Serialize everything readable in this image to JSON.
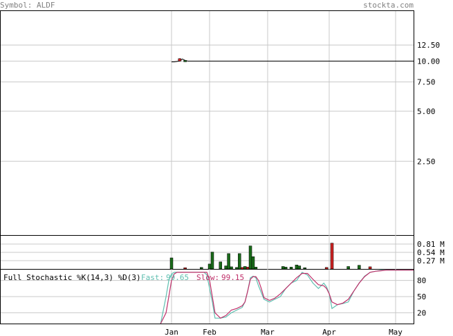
{
  "header": {
    "symbol_label": "Symbol: ALDF",
    "site_label": "stockta.com"
  },
  "colors": {
    "frame": "#000000",
    "grid": "#c8c8c8",
    "header_text": "#808080",
    "up_volume": "#1a6b1a",
    "down_volume": "#cc2222",
    "fast_line": "#5fbfb0",
    "slow_line": "#c0306a",
    "price_line": "#000000"
  },
  "stochastic_legend": {
    "title": "Full Stochastic %K(14,3) %D(3)",
    "fast_label": "Fast:",
    "fast_value": "99.65",
    "slow_label": "Slow:",
    "slow_value": "99.15"
  },
  "chart_data": [
    {
      "type": "line",
      "panel": "price",
      "y_scale": "log",
      "y_tick_labels": [
        "12.50",
        "10.00",
        "7.50",
        "5.00",
        "2.50"
      ],
      "y_ticks": [
        12.5,
        10.0,
        7.5,
        5.0,
        2.5
      ],
      "grid": true,
      "x_tick_labels": [
        "Jan",
        "Feb",
        "Mar",
        "Apr",
        "May"
      ],
      "series": [
        {
          "style": "close_line",
          "x": [
            1,
            2,
            3,
            4,
            5,
            6,
            7,
            8,
            9,
            10,
            11,
            12,
            13,
            14,
            15,
            16,
            17,
            18,
            19,
            20,
            21,
            22,
            23,
            24,
            25,
            26,
            27,
            28,
            29,
            30,
            31,
            32,
            33,
            34,
            35,
            36,
            37,
            38,
            39,
            40,
            41,
            42,
            43,
            44,
            45,
            46,
            47,
            48,
            49,
            50,
            51,
            52,
            53,
            54,
            55,
            56,
            57,
            58,
            59,
            60,
            61,
            62,
            63,
            64,
            65,
            66,
            67,
            68,
            69,
            70,
            71,
            72,
            73,
            74,
            75,
            76,
            77,
            78,
            79,
            80,
            81,
            82,
            83,
            84,
            85,
            86,
            87,
            88,
            89,
            90
          ],
          "values": [
            9.9,
            9.9,
            9.95,
            10.0,
            10.3,
            10.1,
            10.0,
            10.0,
            10.0,
            10.0,
            10.0,
            10.0,
            10.0,
            10.0,
            10.0,
            10.0,
            10.0,
            10.0,
            10.0,
            10.0,
            10.0,
            10.0,
            10.0,
            10.0,
            10.0,
            10.0,
            10.0,
            10.0,
            10.0,
            10.0,
            10.0,
            10.0,
            10.0,
            10.0,
            10.0,
            10.0,
            10.0,
            10.0,
            10.0,
            10.0,
            10.0,
            10.0,
            10.0,
            10.0,
            10.0,
            10.0,
            10.0,
            10.0,
            10.0,
            10.0,
            10.0,
            10.0,
            10.0,
            10.0,
            10.0,
            10.0,
            10.0,
            10.0,
            10.0,
            10.0,
            10.0,
            10.0,
            10.0,
            10.0,
            10.0,
            10.0,
            10.0,
            10.0,
            10.0,
            10.0,
            10.0,
            10.0,
            10.0,
            10.0,
            10.0,
            10.0,
            10.0,
            10.0,
            10.0,
            10.0,
            10.0,
            10.0,
            10.0,
            10.0,
            10.0,
            10.0,
            10.0,
            10.0,
            10.0,
            10.0
          ]
        }
      ],
      "candles": [
        {
          "x": 4,
          "open": 10.0,
          "close": 10.35,
          "high": 10.4,
          "low": 9.95,
          "direction": "down"
        },
        {
          "x": 6,
          "open": 10.1,
          "close": 10.1,
          "high": 10.15,
          "low": 10.0,
          "direction": "up"
        }
      ],
      "x_range": [
        1,
        90
      ],
      "y_range": [
        0.9,
        20
      ]
    },
    {
      "type": "bar",
      "panel": "volume",
      "y_tick_labels": [
        "0.81 M",
        "0.54 M",
        "0.27 M"
      ],
      "y_ticks": [
        0.81,
        0.54,
        0.27
      ],
      "y_unit": "M",
      "grid": true,
      "x_range": [
        1,
        90
      ],
      "y_range": [
        0,
        1.08
      ],
      "bars": [
        {
          "x": 1,
          "value": 0.36,
          "direction": "up"
        },
        {
          "x": 6,
          "value": 0.04,
          "direction": "down"
        },
        {
          "x": 12,
          "value": 0.05,
          "direction": "up"
        },
        {
          "x": 15,
          "value": 0.16,
          "direction": "up"
        },
        {
          "x": 16,
          "value": 0.55,
          "direction": "up"
        },
        {
          "x": 19,
          "value": 0.23,
          "direction": "up"
        },
        {
          "x": 21,
          "value": 0.1,
          "direction": "up"
        },
        {
          "x": 22,
          "value": 0.5,
          "direction": "up"
        },
        {
          "x": 23,
          "value": 0.07,
          "direction": "up"
        },
        {
          "x": 25,
          "value": 0.05,
          "direction": "up"
        },
        {
          "x": 26,
          "value": 0.5,
          "direction": "up"
        },
        {
          "x": 27,
          "value": 0.05,
          "direction": "down"
        },
        {
          "x": 28,
          "value": 0.08,
          "direction": "up"
        },
        {
          "x": 29,
          "value": 0.06,
          "direction": "down"
        },
        {
          "x": 30,
          "value": 0.75,
          "direction": "up"
        },
        {
          "x": 31,
          "value": 0.4,
          "direction": "up"
        },
        {
          "x": 32,
          "value": 0.06,
          "direction": "up"
        },
        {
          "x": 42,
          "value": 0.08,
          "direction": "up"
        },
        {
          "x": 43,
          "value": 0.06,
          "direction": "up"
        },
        {
          "x": 45,
          "value": 0.06,
          "direction": "up"
        },
        {
          "x": 47,
          "value": 0.13,
          "direction": "up"
        },
        {
          "x": 48,
          "value": 0.1,
          "direction": "up"
        },
        {
          "x": 50,
          "value": 0.04,
          "direction": "up"
        },
        {
          "x": 58,
          "value": 0.05,
          "direction": "down"
        },
        {
          "x": 60,
          "value": 0.84,
          "direction": "down"
        },
        {
          "x": 66,
          "value": 0.08,
          "direction": "up"
        },
        {
          "x": 70,
          "value": 0.12,
          "direction": "up"
        },
        {
          "x": 74,
          "value": 0.07,
          "direction": "down"
        }
      ]
    },
    {
      "type": "line",
      "panel": "stochastic",
      "y_tick_labels": [
        "80",
        "50",
        "20"
      ],
      "y_ticks": [
        80,
        50,
        20
      ],
      "grid": true,
      "x_range": [
        1,
        90
      ],
      "y_range": [
        0,
        100
      ],
      "series": [
        {
          "name": "Fast",
          "x": [
            -3,
            -1,
            0,
            1,
            2,
            3,
            5,
            8,
            11,
            13,
            14,
            16,
            17,
            19,
            21,
            23,
            25,
            27,
            28,
            29,
            30,
            31,
            32,
            33,
            35,
            37,
            39,
            41,
            43,
            45,
            47,
            49,
            51,
            53,
            55,
            57,
            58,
            59,
            60,
            62,
            64,
            66,
            68,
            70,
            72,
            74,
            76,
            78,
            80,
            82,
            84,
            86,
            88,
            90
          ],
          "values": [
            0,
            50,
            80,
            92,
            95,
            95,
            95,
            95,
            95,
            95,
            90,
            40,
            10,
            10,
            12,
            20,
            25,
            30,
            40,
            60,
            85,
            88,
            85,
            70,
            45,
            40,
            45,
            50,
            65,
            75,
            80,
            95,
            90,
            75,
            65,
            75,
            68,
            55,
            28,
            35,
            37,
            40,
            60,
            75,
            88,
            95,
            97,
            99,
            99,
            99,
            99,
            99,
            99,
            99
          ]
        },
        {
          "name": "Slow",
          "x": [
            -3,
            -1,
            0,
            1,
            2,
            3,
            5,
            8,
            11,
            13,
            14,
            15,
            16,
            17,
            19,
            21,
            23,
            25,
            27,
            28,
            29,
            30,
            31,
            32,
            33,
            34,
            35,
            37,
            39,
            41,
            43,
            45,
            47,
            49,
            51,
            53,
            55,
            57,
            58,
            59,
            60,
            62,
            64,
            66,
            68,
            70,
            72,
            74,
            76,
            78,
            80,
            82,
            84,
            86,
            88,
            90
          ],
          "values": [
            0,
            20,
            50,
            80,
            92,
            95,
            95,
            95,
            95,
            95,
            95,
            80,
            50,
            20,
            10,
            15,
            25,
            28,
            33,
            40,
            60,
            82,
            87,
            87,
            80,
            65,
            48,
            43,
            47,
            55,
            65,
            75,
            85,
            93,
            93,
            82,
            72,
            70,
            65,
            55,
            40,
            35,
            38,
            45,
            60,
            75,
            87,
            95,
            97,
            98,
            99,
            99,
            99,
            99,
            99,
            99
          ]
        }
      ]
    }
  ]
}
